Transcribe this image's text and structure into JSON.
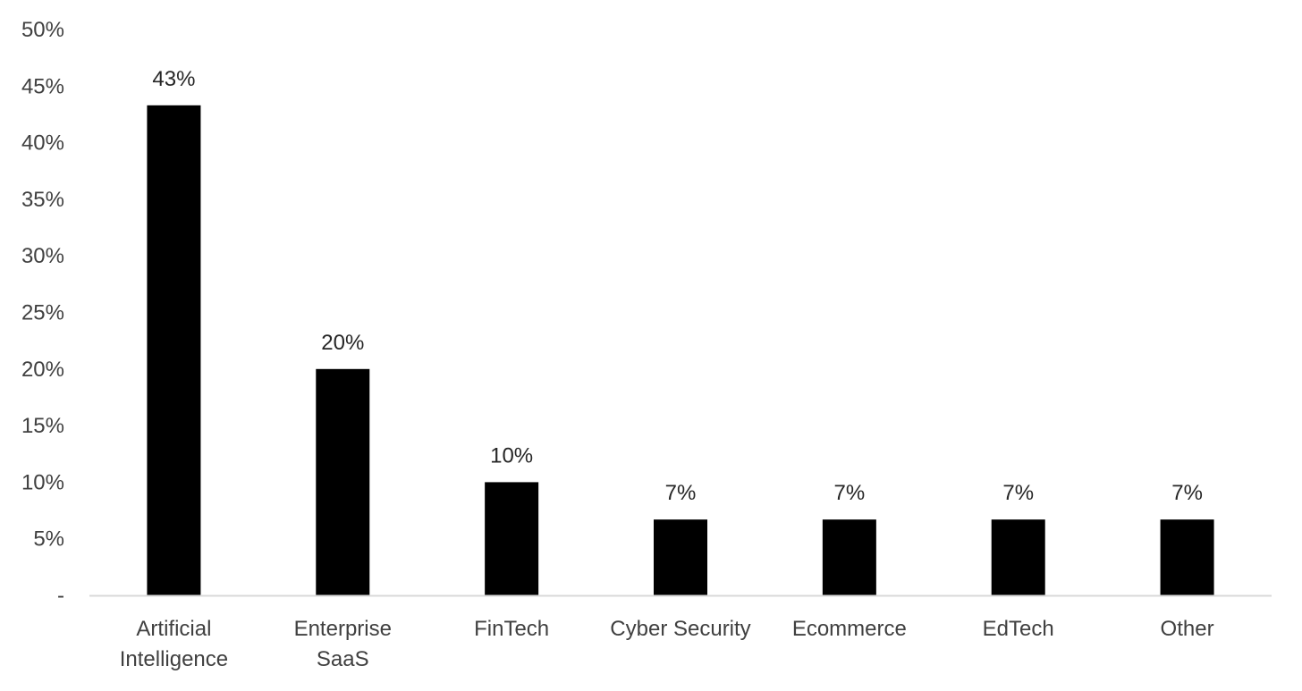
{
  "chart_data": {
    "type": "bar",
    "categories": [
      [
        "Artificial",
        "Intelligence"
      ],
      [
        "Enterprise",
        "SaaS"
      ],
      [
        "FinTech"
      ],
      [
        "Cyber Security"
      ],
      [
        "Ecommerce"
      ],
      [
        "EdTech"
      ],
      [
        "Other"
      ]
    ],
    "values": [
      43.3,
      20,
      10,
      6.7,
      6.7,
      6.7,
      6.7
    ],
    "data_labels": [
      "43%",
      "20%",
      "10%",
      "7%",
      "7%",
      "7%",
      "7%"
    ],
    "y_ticks": [
      {
        "value": 0,
        "label": "-"
      },
      {
        "value": 5,
        "label": "5%"
      },
      {
        "value": 10,
        "label": "10%"
      },
      {
        "value": 15,
        "label": "15%"
      },
      {
        "value": 20,
        "label": "20%"
      },
      {
        "value": 25,
        "label": "25%"
      },
      {
        "value": 30,
        "label": "30%"
      },
      {
        "value": 35,
        "label": "35%"
      },
      {
        "value": 40,
        "label": "40%"
      },
      {
        "value": 45,
        "label": "45%"
      },
      {
        "value": 50,
        "label": "50%"
      }
    ],
    "ylim": [
      0,
      50
    ],
    "title": "",
    "xlabel": "",
    "ylabel": "",
    "grid": false,
    "legend": "none",
    "colors": {
      "bar": "#000000",
      "axis": "#d9d9d9",
      "tick_text": "#404040",
      "label_text": "#262626"
    }
  }
}
